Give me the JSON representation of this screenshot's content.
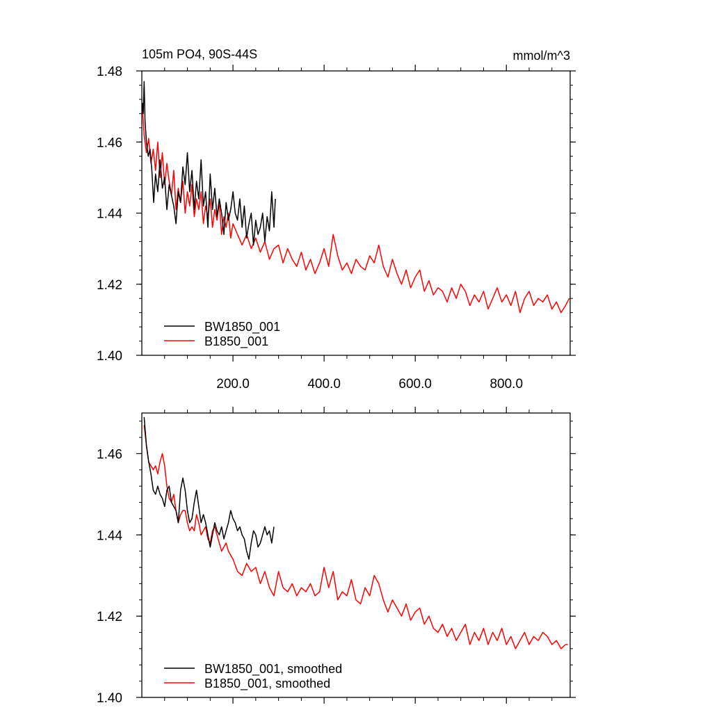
{
  "chart_data": [
    {
      "type": "line",
      "title": "105m PO4, 90S-44S",
      "units": "mmol/m^3",
      "xlim": [
        0,
        940
      ],
      "ylim": [
        1.4,
        1.48
      ],
      "xticks": [
        200,
        400,
        600,
        800
      ],
      "xtick_labels": [
        "200.0",
        "400.0",
        "600.0",
        "800.0"
      ],
      "yticks": [
        1.4,
        1.42,
        1.44,
        1.46,
        1.48
      ],
      "ytick_labels": [
        "1.40",
        "1.42",
        "1.44",
        "1.46",
        "1.48"
      ],
      "legend_position": "bottom-left",
      "series": [
        {
          "name": "BW1850_001",
          "color": "#000000",
          "x": [
            1,
            3,
            5,
            7,
            10,
            14,
            18,
            22,
            26,
            30,
            35,
            40,
            45,
            50,
            55,
            60,
            65,
            70,
            75,
            80,
            85,
            90,
            95,
            100,
            105,
            110,
            115,
            120,
            125,
            130,
            135,
            140,
            145,
            150,
            155,
            160,
            165,
            170,
            175,
            180,
            185,
            190,
            195,
            200,
            205,
            210,
            215,
            220,
            225,
            230,
            235,
            240,
            245,
            250,
            255,
            260,
            265,
            270,
            275,
            280,
            285,
            290,
            293
          ],
          "values": [
            1.471,
            1.468,
            1.477,
            1.466,
            1.46,
            1.456,
            1.458,
            1.452,
            1.443,
            1.451,
            1.446,
            1.455,
            1.447,
            1.45,
            1.441,
            1.448,
            1.445,
            1.442,
            1.437,
            1.446,
            1.443,
            1.453,
            1.448,
            1.457,
            1.446,
            1.452,
            1.441,
            1.449,
            1.444,
            1.455,
            1.442,
            1.446,
            1.436,
            1.451,
            1.441,
            1.447,
            1.439,
            1.444,
            1.44,
            1.434,
            1.443,
            1.438,
            1.441,
            1.446,
            1.44,
            1.438,
            1.444,
            1.436,
            1.442,
            1.433,
            1.437,
            1.44,
            1.431,
            1.438,
            1.434,
            1.436,
            1.44,
            1.432,
            1.439,
            1.435,
            1.446,
            1.436,
            1.444
          ]
        },
        {
          "name": "B1850_001",
          "color": "#ff0000",
          "x": [
            1,
            5,
            10,
            15,
            20,
            25,
            30,
            35,
            40,
            45,
            50,
            55,
            60,
            65,
            70,
            75,
            80,
            85,
            90,
            95,
            100,
            105,
            110,
            115,
            120,
            125,
            130,
            135,
            140,
            145,
            150,
            155,
            160,
            165,
            170,
            175,
            180,
            185,
            190,
            195,
            200,
            210,
            220,
            230,
            240,
            250,
            260,
            270,
            280,
            290,
            300,
            310,
            320,
            330,
            340,
            350,
            360,
            370,
            380,
            390,
            400,
            410,
            420,
            430,
            440,
            450,
            460,
            470,
            480,
            490,
            500,
            510,
            520,
            530,
            540,
            550,
            560,
            570,
            580,
            590,
            600,
            610,
            620,
            630,
            640,
            650,
            660,
            670,
            680,
            690,
            700,
            710,
            720,
            730,
            740,
            750,
            760,
            770,
            780,
            790,
            800,
            810,
            820,
            830,
            840,
            850,
            860,
            870,
            880,
            890,
            900,
            910,
            920,
            930,
            938
          ],
          "values": [
            1.47,
            1.462,
            1.457,
            1.461,
            1.454,
            1.458,
            1.452,
            1.46,
            1.45,
            1.457,
            1.448,
            1.454,
            1.449,
            1.445,
            1.452,
            1.441,
            1.447,
            1.443,
            1.449,
            1.44,
            1.446,
            1.442,
            1.448,
            1.439,
            1.444,
            1.441,
            1.446,
            1.437,
            1.442,
            1.439,
            1.444,
            1.436,
            1.441,
            1.438,
            1.443,
            1.434,
            1.439,
            1.436,
            1.44,
            1.433,
            1.437,
            1.434,
            1.431,
            1.434,
            1.43,
            1.433,
            1.429,
            1.432,
            1.427,
            1.43,
            1.431,
            1.426,
            1.43,
            1.427,
            1.425,
            1.429,
            1.424,
            1.427,
            1.423,
            1.426,
            1.43,
            1.425,
            1.434,
            1.428,
            1.424,
            1.426,
            1.423,
            1.427,
            1.425,
            1.424,
            1.428,
            1.426,
            1.431,
            1.425,
            1.422,
            1.427,
            1.423,
            1.42,
            1.424,
            1.419,
            1.422,
            1.424,
            1.418,
            1.421,
            1.417,
            1.419,
            1.418,
            1.415,
            1.419,
            1.416,
            1.42,
            1.418,
            1.414,
            1.417,
            1.415,
            1.418,
            1.413,
            1.416,
            1.419,
            1.415,
            1.417,
            1.414,
            1.418,
            1.412,
            1.416,
            1.418,
            1.414,
            1.416,
            1.415,
            1.417,
            1.413,
            1.415,
            1.412,
            1.414,
            1.416
          ]
        }
      ]
    },
    {
      "type": "line",
      "title": "",
      "xlim": [
        0,
        940
      ],
      "ylim": [
        1.4,
        1.47
      ],
      "yticks": [
        1.4,
        1.42,
        1.44,
        1.46
      ],
      "ytick_labels": [
        "1.40",
        "1.42",
        "1.44",
        "1.46"
      ],
      "legend_position": "bottom-left",
      "series": [
        {
          "name": "BW1850_001, smoothed",
          "color": "#000000",
          "x": [
            5,
            10,
            15,
            20,
            25,
            30,
            35,
            40,
            45,
            50,
            55,
            60,
            65,
            70,
            75,
            80,
            85,
            90,
            95,
            100,
            105,
            110,
            115,
            120,
            125,
            130,
            135,
            140,
            145,
            150,
            155,
            160,
            165,
            170,
            175,
            180,
            185,
            190,
            195,
            200,
            205,
            210,
            215,
            220,
            225,
            230,
            235,
            240,
            245,
            250,
            255,
            260,
            265,
            270,
            275,
            280,
            285,
            290
          ],
          "values": [
            1.469,
            1.462,
            1.458,
            1.455,
            1.451,
            1.45,
            1.452,
            1.45,
            1.449,
            1.447,
            1.451,
            1.452,
            1.448,
            1.447,
            1.446,
            1.443,
            1.451,
            1.454,
            1.451,
            1.446,
            1.443,
            1.444,
            1.448,
            1.451,
            1.447,
            1.443,
            1.445,
            1.443,
            1.44,
            1.437,
            1.44,
            1.443,
            1.441,
            1.44,
            1.442,
            1.439,
            1.441,
            1.443,
            1.446,
            1.444,
            1.443,
            1.441,
            1.442,
            1.44,
            1.439,
            1.436,
            1.434,
            1.438,
            1.441,
            1.44,
            1.437,
            1.438,
            1.44,
            1.442,
            1.44,
            1.441,
            1.438,
            1.442
          ]
        },
        {
          "name": "B1850_001, smoothed",
          "color": "#ff0000",
          "x": [
            5,
            10,
            15,
            20,
            25,
            30,
            35,
            40,
            45,
            50,
            55,
            60,
            65,
            70,
            75,
            80,
            85,
            90,
            95,
            100,
            105,
            110,
            115,
            120,
            125,
            130,
            135,
            140,
            145,
            150,
            155,
            160,
            165,
            170,
            175,
            180,
            185,
            190,
            195,
            200,
            210,
            220,
            230,
            240,
            250,
            260,
            270,
            280,
            290,
            300,
            310,
            320,
            330,
            340,
            350,
            360,
            370,
            380,
            390,
            400,
            410,
            420,
            430,
            440,
            450,
            460,
            470,
            480,
            490,
            500,
            510,
            520,
            530,
            540,
            550,
            560,
            570,
            580,
            590,
            600,
            610,
            620,
            630,
            640,
            650,
            660,
            670,
            680,
            690,
            700,
            710,
            720,
            730,
            740,
            750,
            760,
            770,
            780,
            790,
            800,
            810,
            820,
            830,
            840,
            850,
            860,
            870,
            880,
            890,
            900,
            910,
            920,
            930,
            935
          ],
          "values": [
            1.467,
            1.462,
            1.458,
            1.457,
            1.456,
            1.457,
            1.455,
            1.458,
            1.46,
            1.457,
            1.452,
            1.449,
            1.448,
            1.45,
            1.446,
            1.443,
            1.445,
            1.446,
            1.446,
            1.443,
            1.441,
            1.442,
            1.441,
            1.445,
            1.443,
            1.44,
            1.441,
            1.442,
            1.439,
            1.438,
            1.441,
            1.442,
            1.44,
            1.438,
            1.436,
            1.437,
            1.438,
            1.436,
            1.435,
            1.434,
            1.431,
            1.43,
            1.433,
            1.431,
            1.432,
            1.428,
            1.431,
            1.427,
            1.425,
            1.431,
            1.427,
            1.426,
            1.428,
            1.425,
            1.427,
            1.426,
            1.428,
            1.425,
            1.426,
            1.432,
            1.427,
            1.431,
            1.424,
            1.426,
            1.425,
            1.429,
            1.424,
            1.423,
            1.427,
            1.425,
            1.43,
            1.428,
            1.424,
            1.421,
            1.424,
            1.422,
            1.42,
            1.423,
            1.419,
            1.421,
            1.422,
            1.418,
            1.42,
            1.417,
            1.416,
            1.418,
            1.415,
            1.417,
            1.414,
            1.416,
            1.418,
            1.413,
            1.416,
            1.414,
            1.417,
            1.413,
            1.416,
            1.414,
            1.417,
            1.413,
            1.415,
            1.412,
            1.414,
            1.416,
            1.413,
            1.415,
            1.414,
            1.416,
            1.415,
            1.413,
            1.414,
            1.412,
            1.413,
            1.413
          ]
        }
      ]
    }
  ]
}
